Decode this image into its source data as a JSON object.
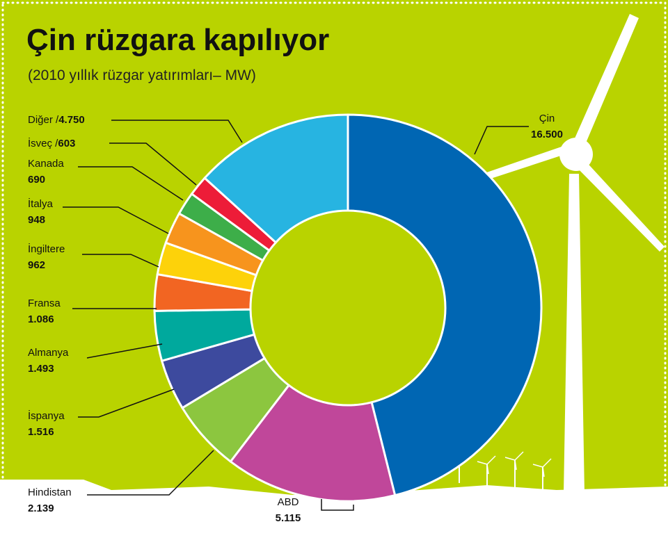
{
  "chart_data": {
    "type": "pie",
    "title": "Çin rüzgara kapılıyor",
    "subtitle": "(2010 yıllık rüzgar yatırımları– MW)",
    "start": "top",
    "direction": "clockwise",
    "donut": true,
    "slices": [
      {
        "name": "Çin",
        "value_label": "16.500",
        "value": 16500,
        "color": "#0066b3"
      },
      {
        "name": "ABD",
        "value_label": "5.115",
        "value": 5115,
        "color": "#c0479a"
      },
      {
        "name": "Hindistan",
        "value_label": "2.139",
        "value": 2139,
        "color": "#8cc63f"
      },
      {
        "name": "İspanya",
        "value_label": "1.516",
        "value": 1516,
        "color": "#3d4a9e"
      },
      {
        "name": "Almanya",
        "value_label": "1.493",
        "value": 1493,
        "color": "#00a99d"
      },
      {
        "name": "Fransa",
        "value_label": "1.086",
        "value": 1086,
        "color": "#f26522"
      },
      {
        "name": "İngiltere",
        "value_label": "962",
        "value": 962,
        "color": "#fdd20a"
      },
      {
        "name": "İtalya",
        "value_label": "948",
        "value": 948,
        "color": "#f7941d"
      },
      {
        "name": "Kanada",
        "value_label": "690",
        "value": 690,
        "color": "#3dae49"
      },
      {
        "name": "İsveç",
        "value_label": "603",
        "value": 603,
        "color": "#ed1c38"
      },
      {
        "name": "Diğer",
        "value_label": "4.750",
        "value": 4750,
        "color": "#27b4e1"
      }
    ]
  },
  "colors": {
    "background": "#b9d300",
    "border_dots": "#ffffff",
    "turbine": "#ffffff"
  }
}
